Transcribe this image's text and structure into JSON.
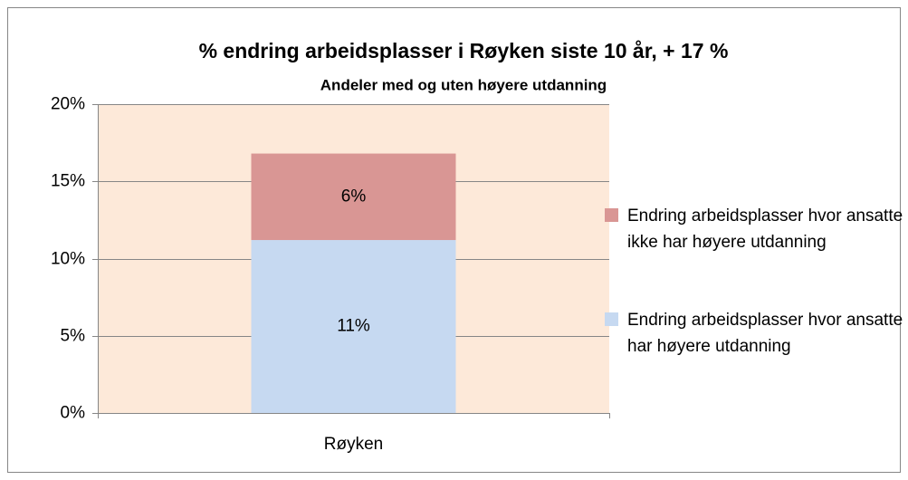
{
  "chart_data": {
    "type": "stacked_bar",
    "title": "% endring arbeidsplasser i Røyken siste 10 år, + 17 %",
    "subtitle": "Andeler med og uten høyere utdanning",
    "categories": [
      "Røyken"
    ],
    "series": [
      {
        "name": "Endring arbeidsplasser hvor ansatte har høyere utdanning",
        "color": "#c6d9f1",
        "values": [
          11.2
        ],
        "value_labels": [
          "11%"
        ]
      },
      {
        "name": "Endring arbeidsplasser hvor ansatte ikke har høyere utdanning",
        "color": "#d99694",
        "values": [
          5.6
        ],
        "value_labels": [
          "6%"
        ]
      }
    ],
    "ylim": [
      0,
      20
    ],
    "yticks": [
      {
        "value": 0,
        "label": "0%"
      },
      {
        "value": 5,
        "label": "5%"
      },
      {
        "value": 10,
        "label": "10%"
      },
      {
        "value": 15,
        "label": "15%"
      },
      {
        "value": 20,
        "label": "20%"
      }
    ],
    "grid": true,
    "plot_background": "#fde9d9",
    "legend": "right"
  }
}
